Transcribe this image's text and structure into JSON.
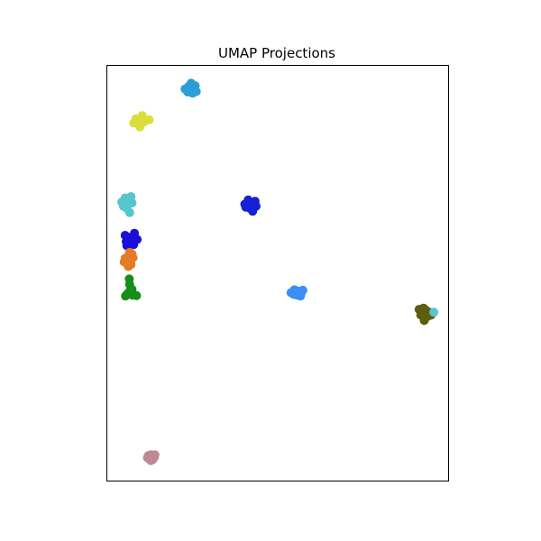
{
  "chart_data": {
    "type": "scatter",
    "title": "UMAP Projections",
    "xlabel": "",
    "ylabel": "",
    "xlim": [
      0,
      100
    ],
    "ylim": [
      0,
      100
    ],
    "axis_ticks": false,
    "grid": false,
    "legend": "none",
    "clusters": [
      {
        "color": "#d8df3a",
        "points": [
          [
            8.0,
            86.0
          ],
          [
            9.2,
            86.5
          ],
          [
            10.5,
            87.8
          ],
          [
            11.0,
            86.3
          ],
          [
            9.8,
            85.1
          ],
          [
            8.6,
            87.0
          ],
          [
            12.5,
            86.8
          ],
          [
            10.3,
            87.4
          ]
        ]
      },
      {
        "color": "#2a9fd6",
        "points": [
          [
            23.0,
            94.2
          ],
          [
            24.3,
            94.0
          ],
          [
            25.5,
            93.8
          ],
          [
            26.0,
            95.0
          ],
          [
            24.8,
            95.6
          ],
          [
            23.8,
            93.5
          ],
          [
            25.2,
            93.2
          ],
          [
            24.0,
            94.8
          ],
          [
            26.3,
            93.6
          ]
        ]
      },
      {
        "color": "#54c6cc",
        "points": [
          [
            4.5,
            67.0
          ],
          [
            5.5,
            68.0
          ],
          [
            6.5,
            67.2
          ],
          [
            7.2,
            68.3
          ],
          [
            5.0,
            66.0
          ],
          [
            6.0,
            65.5
          ],
          [
            7.5,
            66.8
          ],
          [
            6.8,
            64.5
          ],
          [
            5.8,
            67.5
          ]
        ]
      },
      {
        "color": "#1620d4",
        "points": [
          [
            40.5,
            66.5
          ],
          [
            41.5,
            67.5
          ],
          [
            42.5,
            66.8
          ],
          [
            43.5,
            67.2
          ],
          [
            42.0,
            65.5
          ],
          [
            40.8,
            65.8
          ],
          [
            43.8,
            66.0
          ],
          [
            42.8,
            64.8
          ],
          [
            41.8,
            66.2
          ]
        ]
      },
      {
        "color": "#1a0fd9",
        "points": [
          [
            5.5,
            59.0
          ],
          [
            6.8,
            58.5
          ],
          [
            8.2,
            59.5
          ],
          [
            9.0,
            58.0
          ],
          [
            6.5,
            57.8
          ],
          [
            7.5,
            57.0
          ],
          [
            6.0,
            56.5
          ],
          [
            5.8,
            57.5
          ],
          [
            8.0,
            56.8
          ],
          [
            7.0,
            58.0
          ]
        ]
      },
      {
        "color": "#e47c24",
        "points": [
          [
            5.5,
            53.5
          ],
          [
            6.5,
            54.0
          ],
          [
            7.8,
            53.6
          ],
          [
            5.2,
            52.6
          ],
          [
            6.2,
            52.2
          ],
          [
            7.5,
            54.5
          ],
          [
            7.2,
            52.0
          ],
          [
            6.4,
            51.5
          ],
          [
            6.8,
            54.9
          ]
        ]
      },
      {
        "color": "#129018",
        "points": [
          [
            6.7,
            48.5
          ],
          [
            7.5,
            46.0
          ],
          [
            6.2,
            45.0
          ],
          [
            5.6,
            44.4
          ],
          [
            7.6,
            44.6
          ],
          [
            8.8,
            44.5
          ],
          [
            7.0,
            45.8
          ],
          [
            6.8,
            47.2
          ]
        ]
      },
      {
        "color": "#3a8ff2",
        "points": [
          [
            54.0,
            45.2
          ],
          [
            55.0,
            45.9
          ],
          [
            56.0,
            45.6
          ],
          [
            57.0,
            45.1
          ],
          [
            57.5,
            45.8
          ],
          [
            55.8,
            44.6
          ],
          [
            56.8,
            44.4
          ],
          [
            54.8,
            44.8
          ],
          [
            55.5,
            45.3
          ]
        ]
      },
      {
        "color": "#5d5d0e",
        "points": [
          [
            91.5,
            41.2
          ],
          [
            92.5,
            40.5
          ],
          [
            93.5,
            41.0
          ],
          [
            94.0,
            39.5
          ],
          [
            95.0,
            39.8
          ],
          [
            92.0,
            39.8
          ],
          [
            93.0,
            38.5
          ],
          [
            94.5,
            40.5
          ],
          [
            92.8,
            41.5
          ]
        ]
      },
      {
        "color": "#54c6cc",
        "points": [
          [
            95.8,
            40.5
          ]
        ]
      },
      {
        "color": "#c08890",
        "points": [
          [
            12.0,
            5.5
          ],
          [
            13.0,
            6.2
          ],
          [
            14.0,
            5.6
          ],
          [
            13.5,
            5.0
          ],
          [
            12.5,
            5.2
          ],
          [
            14.2,
            6.2
          ],
          [
            13.0,
            4.8
          ],
          [
            12.3,
            6.0
          ]
        ]
      }
    ]
  }
}
